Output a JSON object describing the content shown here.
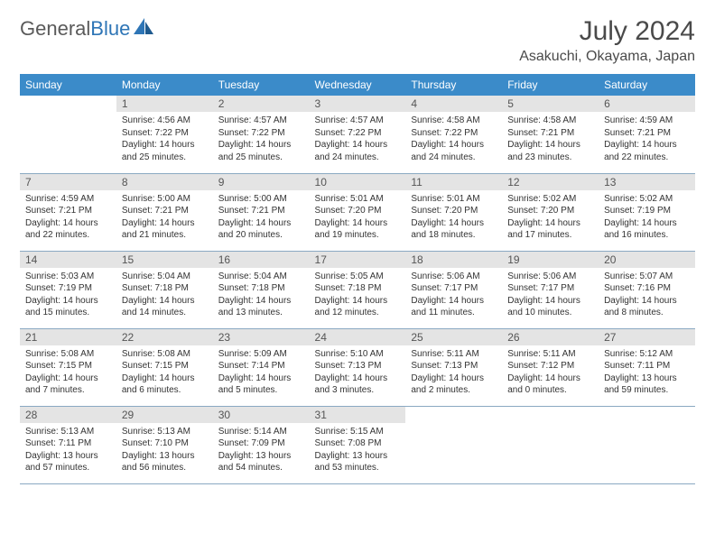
{
  "brand": {
    "part1": "General",
    "part2": "Blue"
  },
  "title": "July 2024",
  "location": "Asakuchi, Okayama, Japan",
  "header_bg": "#3b8bc9",
  "daynum_bg": "#e4e4e4",
  "rule_color": "#8aa9c2",
  "weekdays": [
    "Sunday",
    "Monday",
    "Tuesday",
    "Wednesday",
    "Thursday",
    "Friday",
    "Saturday"
  ],
  "weeks": [
    [
      {
        "n": "",
        "lines": [
          "",
          "",
          "",
          ""
        ]
      },
      {
        "n": "1",
        "lines": [
          "Sunrise: 4:56 AM",
          "Sunset: 7:22 PM",
          "Daylight: 14 hours",
          "and 25 minutes."
        ]
      },
      {
        "n": "2",
        "lines": [
          "Sunrise: 4:57 AM",
          "Sunset: 7:22 PM",
          "Daylight: 14 hours",
          "and 25 minutes."
        ]
      },
      {
        "n": "3",
        "lines": [
          "Sunrise: 4:57 AM",
          "Sunset: 7:22 PM",
          "Daylight: 14 hours",
          "and 24 minutes."
        ]
      },
      {
        "n": "4",
        "lines": [
          "Sunrise: 4:58 AM",
          "Sunset: 7:22 PM",
          "Daylight: 14 hours",
          "and 24 minutes."
        ]
      },
      {
        "n": "5",
        "lines": [
          "Sunrise: 4:58 AM",
          "Sunset: 7:21 PM",
          "Daylight: 14 hours",
          "and 23 minutes."
        ]
      },
      {
        "n": "6",
        "lines": [
          "Sunrise: 4:59 AM",
          "Sunset: 7:21 PM",
          "Daylight: 14 hours",
          "and 22 minutes."
        ]
      }
    ],
    [
      {
        "n": "7",
        "lines": [
          "Sunrise: 4:59 AM",
          "Sunset: 7:21 PM",
          "Daylight: 14 hours",
          "and 22 minutes."
        ]
      },
      {
        "n": "8",
        "lines": [
          "Sunrise: 5:00 AM",
          "Sunset: 7:21 PM",
          "Daylight: 14 hours",
          "and 21 minutes."
        ]
      },
      {
        "n": "9",
        "lines": [
          "Sunrise: 5:00 AM",
          "Sunset: 7:21 PM",
          "Daylight: 14 hours",
          "and 20 minutes."
        ]
      },
      {
        "n": "10",
        "lines": [
          "Sunrise: 5:01 AM",
          "Sunset: 7:20 PM",
          "Daylight: 14 hours",
          "and 19 minutes."
        ]
      },
      {
        "n": "11",
        "lines": [
          "Sunrise: 5:01 AM",
          "Sunset: 7:20 PM",
          "Daylight: 14 hours",
          "and 18 minutes."
        ]
      },
      {
        "n": "12",
        "lines": [
          "Sunrise: 5:02 AM",
          "Sunset: 7:20 PM",
          "Daylight: 14 hours",
          "and 17 minutes."
        ]
      },
      {
        "n": "13",
        "lines": [
          "Sunrise: 5:02 AM",
          "Sunset: 7:19 PM",
          "Daylight: 14 hours",
          "and 16 minutes."
        ]
      }
    ],
    [
      {
        "n": "14",
        "lines": [
          "Sunrise: 5:03 AM",
          "Sunset: 7:19 PM",
          "Daylight: 14 hours",
          "and 15 minutes."
        ]
      },
      {
        "n": "15",
        "lines": [
          "Sunrise: 5:04 AM",
          "Sunset: 7:18 PM",
          "Daylight: 14 hours",
          "and 14 minutes."
        ]
      },
      {
        "n": "16",
        "lines": [
          "Sunrise: 5:04 AM",
          "Sunset: 7:18 PM",
          "Daylight: 14 hours",
          "and 13 minutes."
        ]
      },
      {
        "n": "17",
        "lines": [
          "Sunrise: 5:05 AM",
          "Sunset: 7:18 PM",
          "Daylight: 14 hours",
          "and 12 minutes."
        ]
      },
      {
        "n": "18",
        "lines": [
          "Sunrise: 5:06 AM",
          "Sunset: 7:17 PM",
          "Daylight: 14 hours",
          "and 11 minutes."
        ]
      },
      {
        "n": "19",
        "lines": [
          "Sunrise: 5:06 AM",
          "Sunset: 7:17 PM",
          "Daylight: 14 hours",
          "and 10 minutes."
        ]
      },
      {
        "n": "20",
        "lines": [
          "Sunrise: 5:07 AM",
          "Sunset: 7:16 PM",
          "Daylight: 14 hours",
          "and 8 minutes."
        ]
      }
    ],
    [
      {
        "n": "21",
        "lines": [
          "Sunrise: 5:08 AM",
          "Sunset: 7:15 PM",
          "Daylight: 14 hours",
          "and 7 minutes."
        ]
      },
      {
        "n": "22",
        "lines": [
          "Sunrise: 5:08 AM",
          "Sunset: 7:15 PM",
          "Daylight: 14 hours",
          "and 6 minutes."
        ]
      },
      {
        "n": "23",
        "lines": [
          "Sunrise: 5:09 AM",
          "Sunset: 7:14 PM",
          "Daylight: 14 hours",
          "and 5 minutes."
        ]
      },
      {
        "n": "24",
        "lines": [
          "Sunrise: 5:10 AM",
          "Sunset: 7:13 PM",
          "Daylight: 14 hours",
          "and 3 minutes."
        ]
      },
      {
        "n": "25",
        "lines": [
          "Sunrise: 5:11 AM",
          "Sunset: 7:13 PM",
          "Daylight: 14 hours",
          "and 2 minutes."
        ]
      },
      {
        "n": "26",
        "lines": [
          "Sunrise: 5:11 AM",
          "Sunset: 7:12 PM",
          "Daylight: 14 hours",
          "and 0 minutes."
        ]
      },
      {
        "n": "27",
        "lines": [
          "Sunrise: 5:12 AM",
          "Sunset: 7:11 PM",
          "Daylight: 13 hours",
          "and 59 minutes."
        ]
      }
    ],
    [
      {
        "n": "28",
        "lines": [
          "Sunrise: 5:13 AM",
          "Sunset: 7:11 PM",
          "Daylight: 13 hours",
          "and 57 minutes."
        ]
      },
      {
        "n": "29",
        "lines": [
          "Sunrise: 5:13 AM",
          "Sunset: 7:10 PM",
          "Daylight: 13 hours",
          "and 56 minutes."
        ]
      },
      {
        "n": "30",
        "lines": [
          "Sunrise: 5:14 AM",
          "Sunset: 7:09 PM",
          "Daylight: 13 hours",
          "and 54 minutes."
        ]
      },
      {
        "n": "31",
        "lines": [
          "Sunrise: 5:15 AM",
          "Sunset: 7:08 PM",
          "Daylight: 13 hours",
          "and 53 minutes."
        ]
      },
      {
        "n": "",
        "lines": [
          "",
          "",
          "",
          ""
        ]
      },
      {
        "n": "",
        "lines": [
          "",
          "",
          "",
          ""
        ]
      },
      {
        "n": "",
        "lines": [
          "",
          "",
          "",
          ""
        ]
      }
    ]
  ]
}
